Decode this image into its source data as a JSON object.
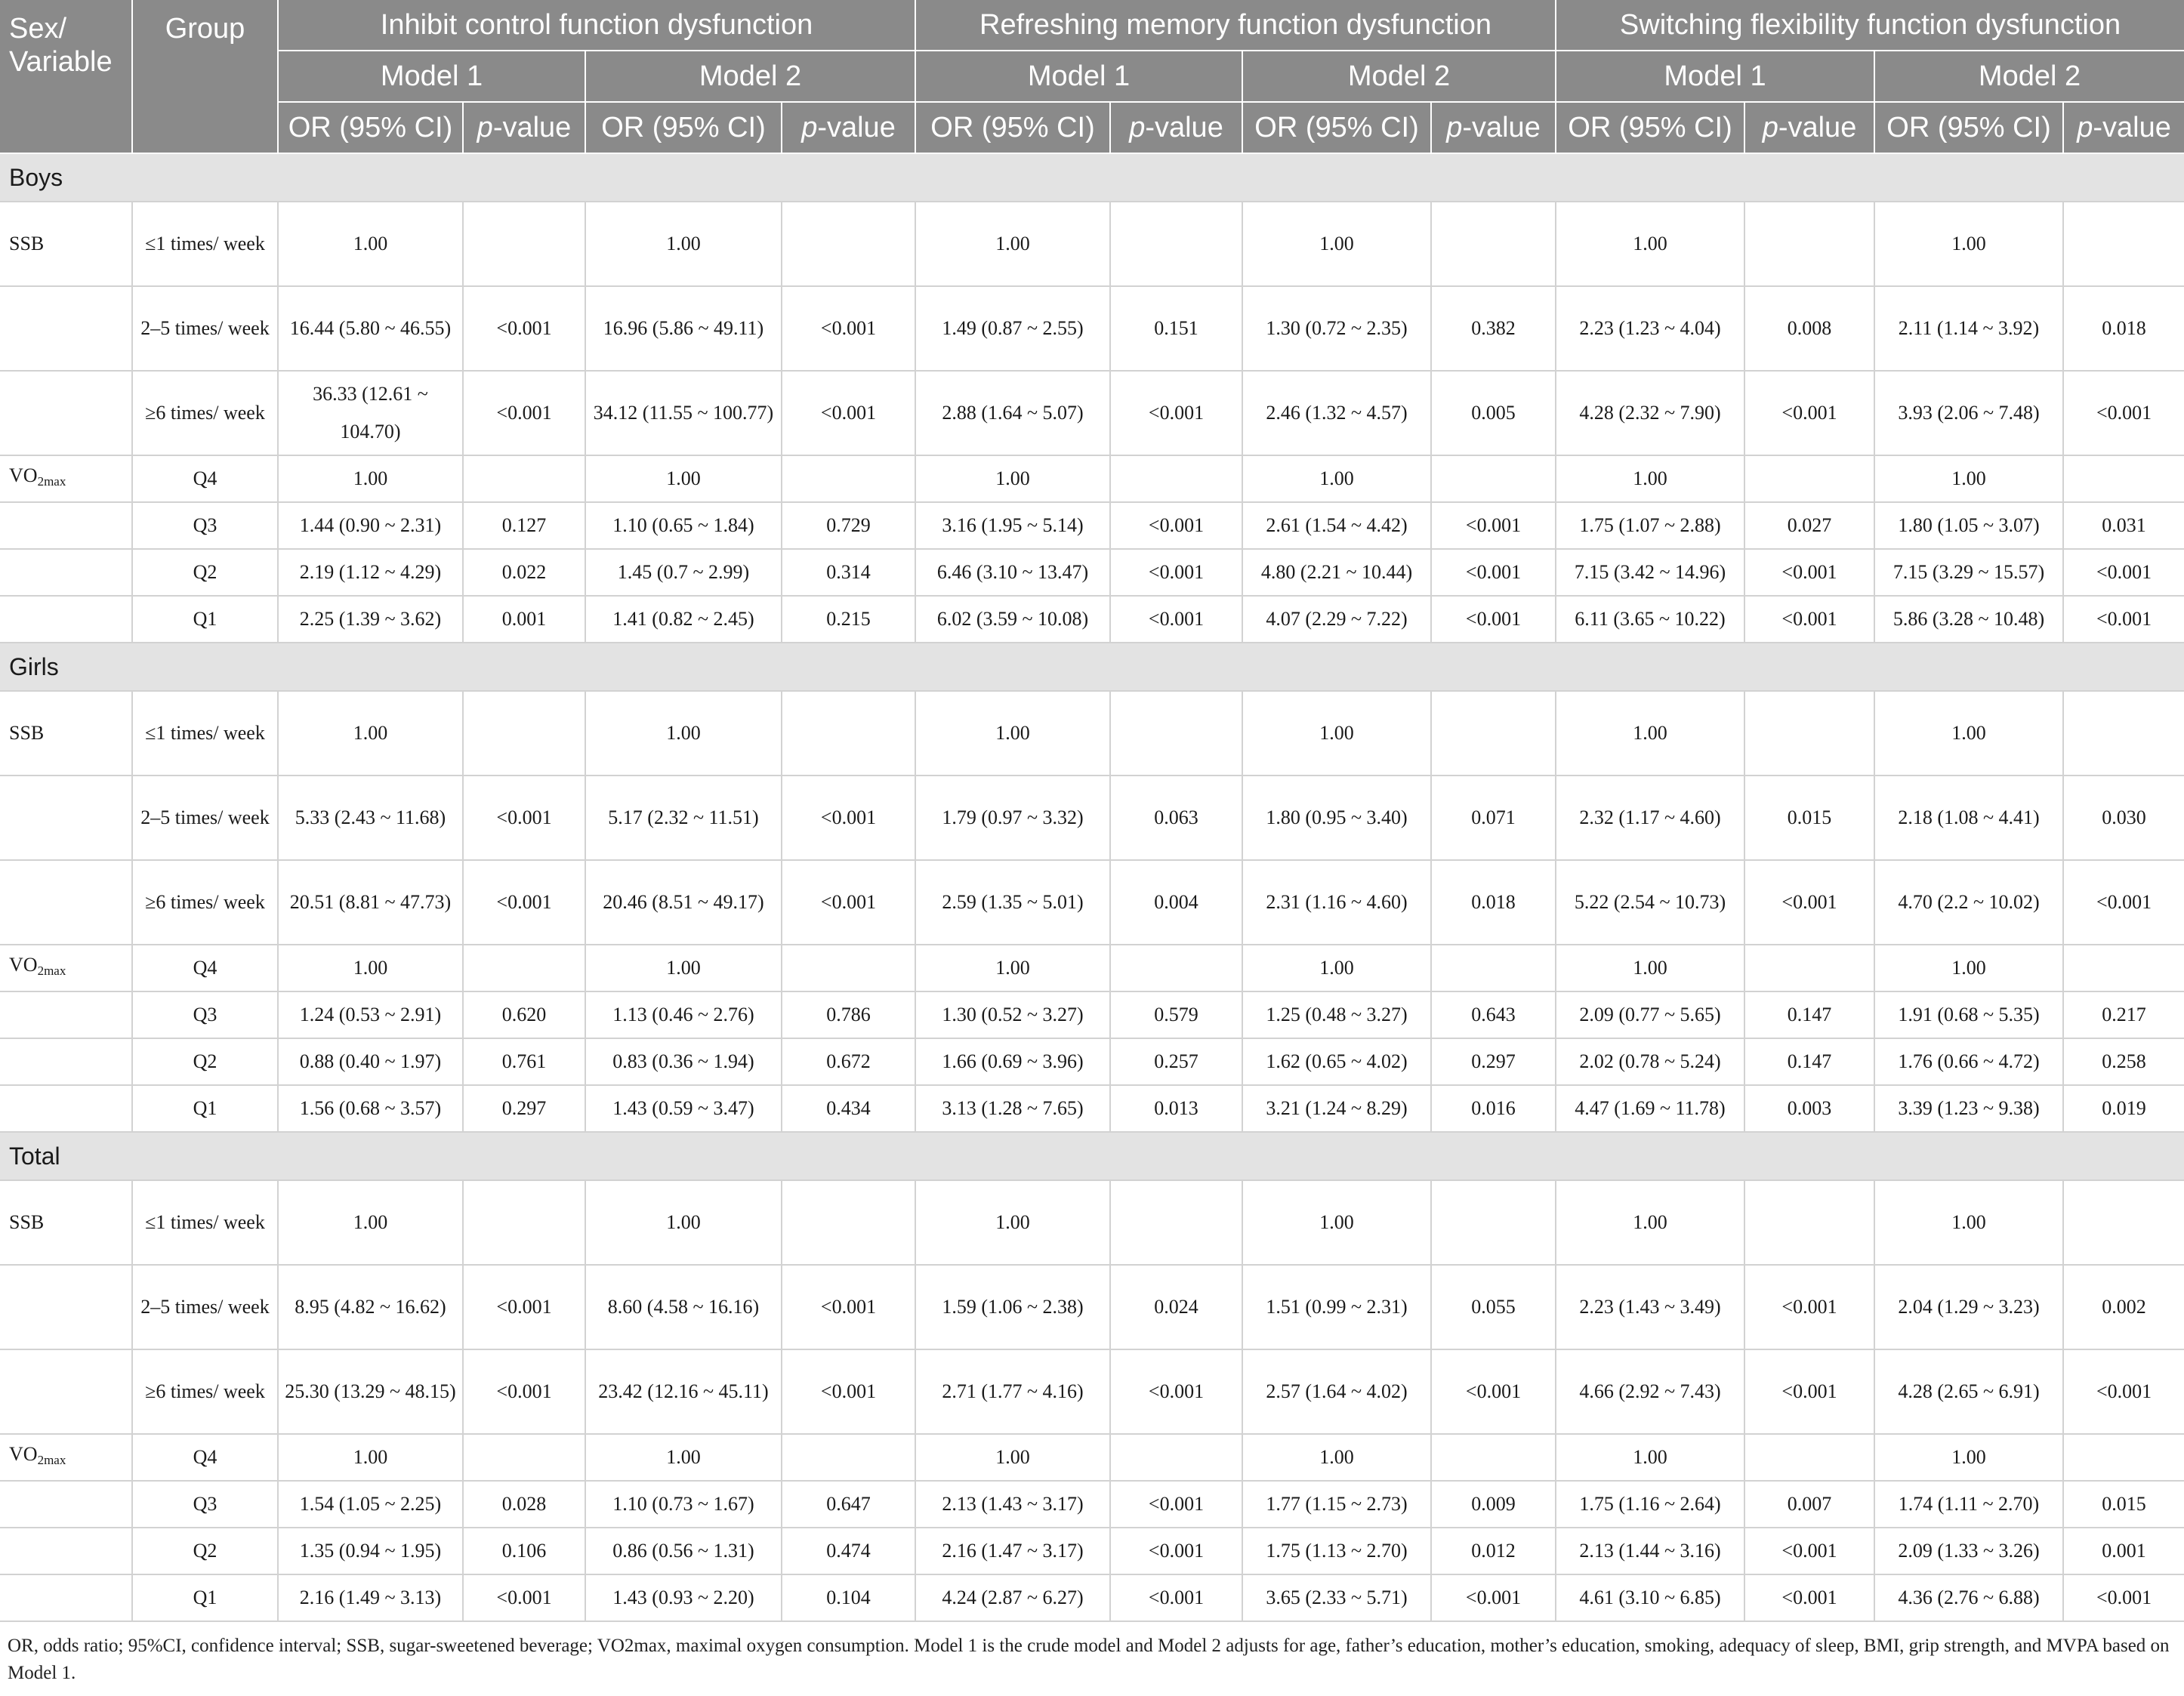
{
  "header": {
    "corner": "Sex/ Variable",
    "group": "Group",
    "functions": [
      "Inhibit control function dysfunction",
      "Refreshing memory function dysfunction",
      "Switching flexibility function dysfunction"
    ],
    "model1": "Model 1",
    "model2": "Model 2",
    "or_label": "OR (95% CI)",
    "p_italic": "p",
    "p_suffix": "-value"
  },
  "sections": [
    {
      "label": "Boys",
      "rows": [
        {
          "variable": "SSB",
          "group": "≤1 times/ week",
          "cells": [
            "1.00",
            "",
            "1.00",
            "",
            "1.00",
            "",
            "1.00",
            "",
            "1.00",
            "",
            "1.00",
            ""
          ]
        },
        {
          "variable": "",
          "group": "2–5 times/ week",
          "cells": [
            "16.44 (5.80 ~ 46.55)",
            "<0.001",
            "16.96 (5.86 ~ 49.11)",
            "<0.001",
            "1.49 (0.87 ~ 2.55)",
            "0.151",
            "1.30 (0.72 ~ 2.35)",
            "0.382",
            "2.23 (1.23 ~ 4.04)",
            "0.008",
            "2.11 (1.14 ~ 3.92)",
            "0.018"
          ]
        },
        {
          "variable": "",
          "group": "≥6 times/ week",
          "cells": [
            "36.33 (12.61 ~ 104.70)",
            "<0.001",
            "34.12 (11.55 ~ 100.77)",
            "<0.001",
            "2.88 (1.64 ~ 5.07)",
            "<0.001",
            "2.46 (1.32 ~ 4.57)",
            "0.005",
            "4.28 (2.32 ~ 7.90)",
            "<0.001",
            "3.93 (2.06 ~ 7.48)",
            "<0.001"
          ]
        },
        {
          "variable": "VO2max",
          "group": "Q4",
          "cells": [
            "1.00",
            "",
            "1.00",
            "",
            "1.00",
            "",
            "1.00",
            "",
            "1.00",
            "",
            "1.00",
            ""
          ]
        },
        {
          "variable": "",
          "group": "Q3",
          "cells": [
            "1.44 (0.90 ~ 2.31)",
            "0.127",
            "1.10 (0.65 ~ 1.84)",
            "0.729",
            "3.16 (1.95 ~ 5.14)",
            "<0.001",
            "2.61 (1.54 ~ 4.42)",
            "<0.001",
            "1.75 (1.07 ~ 2.88)",
            "0.027",
            "1.80 (1.05 ~ 3.07)",
            "0.031"
          ]
        },
        {
          "variable": "",
          "group": "Q2",
          "cells": [
            "2.19 (1.12 ~ 4.29)",
            "0.022",
            "1.45 (0.7 ~ 2.99)",
            "0.314",
            "6.46 (3.10 ~ 13.47)",
            "<0.001",
            "4.80 (2.21 ~ 10.44)",
            "<0.001",
            "7.15 (3.42 ~ 14.96)",
            "<0.001",
            "7.15 (3.29 ~ 15.57)",
            "<0.001"
          ]
        },
        {
          "variable": "",
          "group": "Q1",
          "cells": [
            "2.25 (1.39 ~ 3.62)",
            "0.001",
            "1.41 (0.82 ~ 2.45)",
            "0.215",
            "6.02 (3.59 ~ 10.08)",
            "<0.001",
            "4.07 (2.29 ~ 7.22)",
            "<0.001",
            "6.11 (3.65 ~ 10.22)",
            "<0.001",
            "5.86 (3.28 ~ 10.48)",
            "<0.001"
          ]
        }
      ]
    },
    {
      "label": "Girls",
      "rows": [
        {
          "variable": "SSB",
          "group": "≤1 times/ week",
          "cells": [
            "1.00",
            "",
            "1.00",
            "",
            "1.00",
            "",
            "1.00",
            "",
            "1.00",
            "",
            "1.00",
            ""
          ]
        },
        {
          "variable": "",
          "group": "2–5 times/ week",
          "cells": [
            "5.33 (2.43 ~ 11.68)",
            "<0.001",
            "5.17 (2.32 ~ 11.51)",
            "<0.001",
            "1.79 (0.97 ~ 3.32)",
            "0.063",
            "1.80 (0.95 ~ 3.40)",
            "0.071",
            "2.32 (1.17 ~ 4.60)",
            "0.015",
            "2.18 (1.08 ~ 4.41)",
            "0.030"
          ]
        },
        {
          "variable": "",
          "group": "≥6 times/ week",
          "cells": [
            "20.51 (8.81 ~ 47.73)",
            "<0.001",
            "20.46 (8.51 ~ 49.17)",
            "<0.001",
            "2.59 (1.35 ~ 5.01)",
            "0.004",
            "2.31 (1.16 ~ 4.60)",
            "0.018",
            "5.22 (2.54 ~ 10.73)",
            "<0.001",
            "4.70 (2.2 ~ 10.02)",
            "<0.001"
          ]
        },
        {
          "variable": "VO2max",
          "group": "Q4",
          "cells": [
            "1.00",
            "",
            "1.00",
            "",
            "1.00",
            "",
            "1.00",
            "",
            "1.00",
            "",
            "1.00",
            ""
          ]
        },
        {
          "variable": "",
          "group": "Q3",
          "cells": [
            "1.24 (0.53 ~ 2.91)",
            "0.620",
            "1.13 (0.46 ~ 2.76)",
            "0.786",
            "1.30 (0.52 ~ 3.27)",
            "0.579",
            "1.25 (0.48 ~ 3.27)",
            "0.643",
            "2.09 (0.77 ~ 5.65)",
            "0.147",
            "1.91 (0.68 ~ 5.35)",
            "0.217"
          ]
        },
        {
          "variable": "",
          "group": "Q2",
          "cells": [
            "0.88 (0.40 ~ 1.97)",
            "0.761",
            "0.83 (0.36 ~ 1.94)",
            "0.672",
            "1.66 (0.69 ~ 3.96)",
            "0.257",
            "1.62 (0.65 ~ 4.02)",
            "0.297",
            "2.02 (0.78 ~ 5.24)",
            "0.147",
            "1.76 (0.66 ~ 4.72)",
            "0.258"
          ]
        },
        {
          "variable": "",
          "group": "Q1",
          "cells": [
            "1.56 (0.68 ~ 3.57)",
            "0.297",
            "1.43 (0.59 ~ 3.47)",
            "0.434",
            "3.13 (1.28 ~ 7.65)",
            "0.013",
            "3.21 (1.24 ~ 8.29)",
            "0.016",
            "4.47 (1.69 ~ 11.78)",
            "0.003",
            "3.39 (1.23 ~ 9.38)",
            "0.019"
          ]
        }
      ]
    },
    {
      "label": "Total",
      "rows": [
        {
          "variable": "SSB",
          "group": "≤1 times/ week",
          "cells": [
            "1.00",
            "",
            "1.00",
            "",
            "1.00",
            "",
            "1.00",
            "",
            "1.00",
            "",
            "1.00",
            ""
          ]
        },
        {
          "variable": "",
          "group": "2–5 times/ week",
          "cells": [
            "8.95 (4.82 ~ 16.62)",
            "<0.001",
            "8.60 (4.58 ~ 16.16)",
            "<0.001",
            "1.59 (1.06 ~ 2.38)",
            "0.024",
            "1.51 (0.99 ~ 2.31)",
            "0.055",
            "2.23 (1.43 ~ 3.49)",
            "<0.001",
            "2.04 (1.29 ~ 3.23)",
            "0.002"
          ]
        },
        {
          "variable": "",
          "group": "≥6 times/ week",
          "cells": [
            "25.30 (13.29 ~ 48.15)",
            "<0.001",
            "23.42 (12.16 ~ 45.11)",
            "<0.001",
            "2.71 (1.77 ~ 4.16)",
            "<0.001",
            "2.57 (1.64 ~ 4.02)",
            "<0.001",
            "4.66 (2.92 ~ 7.43)",
            "<0.001",
            "4.28 (2.65 ~ 6.91)",
            "<0.001"
          ]
        },
        {
          "variable": "VO2max",
          "group": "Q4",
          "cells": [
            "1.00",
            "",
            "1.00",
            "",
            "1.00",
            "",
            "1.00",
            "",
            "1.00",
            "",
            "1.00",
            ""
          ]
        },
        {
          "variable": "",
          "group": "Q3",
          "cells": [
            "1.54 (1.05 ~ 2.25)",
            "0.028",
            "1.10 (0.73 ~ 1.67)",
            "0.647",
            "2.13 (1.43 ~ 3.17)",
            "<0.001",
            "1.77 (1.15 ~ 2.73)",
            "0.009",
            "1.75 (1.16 ~ 2.64)",
            "0.007",
            "1.74 (1.11 ~ 2.70)",
            "0.015"
          ]
        },
        {
          "variable": "",
          "group": "Q2",
          "cells": [
            "1.35 (0.94 ~ 1.95)",
            "0.106",
            "0.86 (0.56 ~ 1.31)",
            "0.474",
            "2.16 (1.47 ~ 3.17)",
            "<0.001",
            "1.75 (1.13 ~ 2.70)",
            "0.012",
            "2.13 (1.44 ~ 3.16)",
            "<0.001",
            "2.09 (1.33 ~ 3.26)",
            "0.001"
          ]
        },
        {
          "variable": "",
          "group": "Q1",
          "cells": [
            "2.16 (1.49 ~ 3.13)",
            "<0.001",
            "1.43 (0.93 ~ 2.20)",
            "0.104",
            "4.24 (2.87 ~ 6.27)",
            "<0.001",
            "3.65 (2.33 ~ 5.71)",
            "<0.001",
            "4.61 (3.10 ~ 6.85)",
            "<0.001",
            "4.36 (2.76 ~ 6.88)",
            "<0.001"
          ]
        }
      ]
    }
  ],
  "footnote": "OR, odds ratio; 95%CI, confidence interval; SSB, sugar-sweetened beverage; VO2max, maximal oxygen consumption. Model 1 is the crude model and Model 2 adjusts for age, father’s education, mother’s education, smoking, adequacy of sleep, BMI, grip strength, and MVPA based on Model 1."
}
